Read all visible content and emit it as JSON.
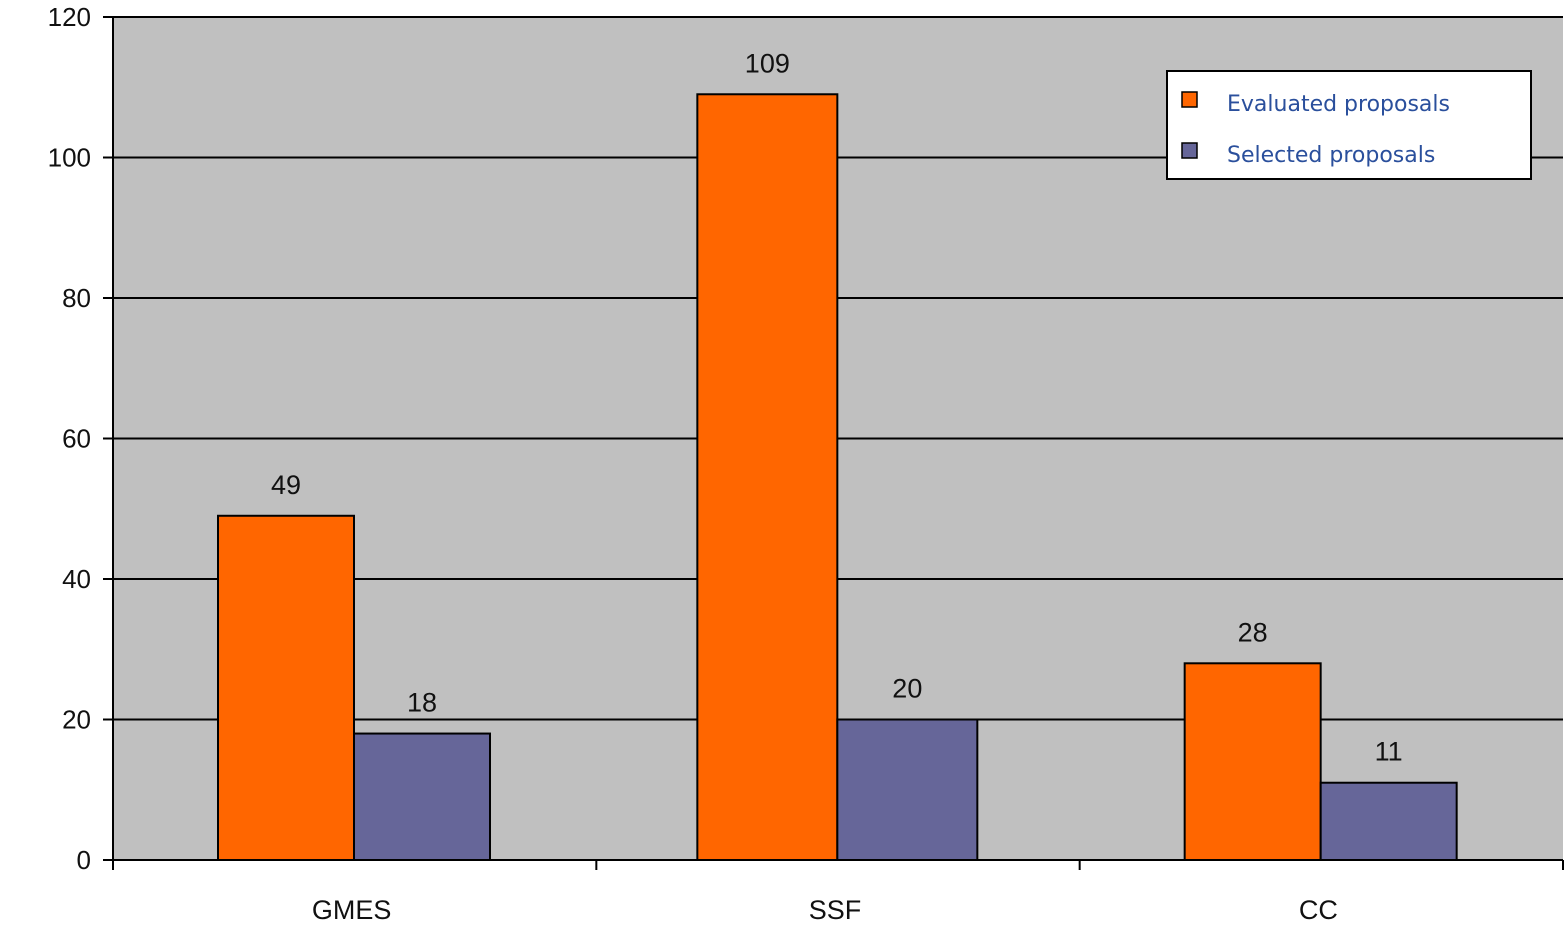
{
  "chart_data": {
    "type": "bar",
    "categories": [
      "GMES",
      "SSF",
      "CC"
    ],
    "series": [
      {
        "name": "Evaluated proposals",
        "values": [
          49,
          109,
          28
        ],
        "color": "#ff6600"
      },
      {
        "name": "Selected proposals",
        "values": [
          18,
          20,
          11
        ],
        "color": "#666699"
      }
    ],
    "title": "",
    "xlabel": "",
    "ylabel": "",
    "ylim": [
      0,
      120
    ],
    "yticks": [
      0,
      20,
      40,
      60,
      80,
      100,
      120
    ],
    "grid": true,
    "legend_position": "top-right",
    "plot_background": "#c0c0c0",
    "data_labels": true
  }
}
